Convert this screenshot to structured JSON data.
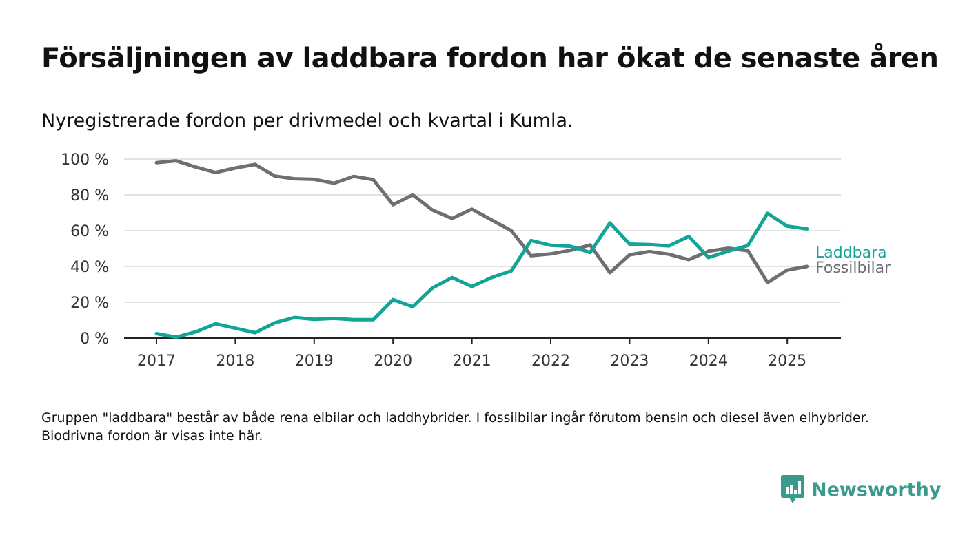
{
  "title": "Försäljningen av laddbara fordon har ökat de senaste åren",
  "subtitle": "Nyregistrerade fordon per drivmedel och kvartal i Kumla.",
  "note": "Gruppen \"laddbara\" består av både rena elbilar och laddhybrider. I fossilbilar ingår förutom bensin och diesel även elhybrider. Biodrivna fordon är visas inte här.",
  "brand": {
    "name": "Newsworthy",
    "icon": "newsworthy-logo-icon",
    "color": "#3a9a8c"
  },
  "chart_data": {
    "type": "line",
    "title": "Försäljningen av laddbara fordon har ökat de senaste åren",
    "subtitle": "Nyregistrerade fordon per drivmedel och kvartal i Kumla.",
    "x_ticks": [
      "2017",
      "2018",
      "2019",
      "2020",
      "2021",
      "2022",
      "2023",
      "2024",
      "2025"
    ],
    "y_ticks": [
      "0 %",
      "20 %",
      "40 %",
      "60 %",
      "80 %",
      "100 %"
    ],
    "ylim": [
      0,
      100
    ],
    "grid": true,
    "legend": "right, at line ends",
    "x": [
      "2017 Q1",
      "2017 Q2",
      "2017 Q3",
      "2017 Q4",
      "2018 Q1",
      "2018 Q2",
      "2018 Q3",
      "2018 Q4",
      "2019 Q1",
      "2019 Q2",
      "2019 Q3",
      "2019 Q4",
      "2020 Q1",
      "2020 Q2",
      "2020 Q3",
      "2020 Q4",
      "2021 Q1",
      "2021 Q2",
      "2021 Q3",
      "2021 Q4",
      "2022 Q1",
      "2022 Q2",
      "2022 Q3",
      "2022 Q4",
      "2023 Q1",
      "2023 Q2",
      "2023 Q3",
      "2023 Q4",
      "2024 Q1",
      "2024 Q2",
      "2024 Q3",
      "2024 Q4",
      "2025 Q1",
      "2025 Q2"
    ],
    "series": [
      {
        "name": "Laddbara",
        "color": "#12a497",
        "values": [
          2.5,
          0.5,
          3.5,
          8,
          5.5,
          3,
          8.5,
          11.5,
          10.5,
          11,
          10.3,
          10.3,
          21.5,
          17.5,
          28,
          33.8,
          28.8,
          33.8,
          37.5,
          54.5,
          51.8,
          51.3,
          47.8,
          64.3,
          52.5,
          52.2,
          51.5,
          56.8,
          45,
          48.5,
          51.7,
          69.7,
          62.5,
          61
        ]
      },
      {
        "name": "Fossilbilar",
        "color": "#6f6e74",
        "values": [
          98,
          99,
          95.5,
          92.5,
          95,
          97,
          90.5,
          89,
          88.7,
          86.5,
          90.3,
          88.5,
          74.5,
          80,
          71.5,
          66.8,
          72,
          66,
          60,
          46,
          47,
          49,
          52,
          36.5,
          46.5,
          48.3,
          46.8,
          43.8,
          48.5,
          50.2,
          48.8,
          31,
          38,
          40
        ]
      }
    ]
  }
}
